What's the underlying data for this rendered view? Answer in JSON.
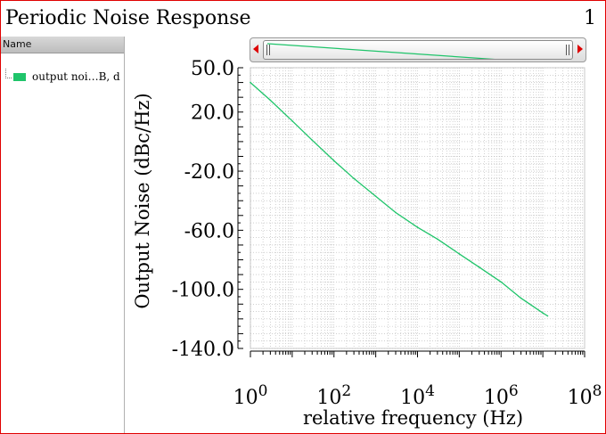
{
  "window": {
    "title": "Periodic Noise Response",
    "page_number": "1"
  },
  "legend": {
    "header": "Name",
    "items": [
      {
        "label": "output noi…B, d",
        "color": "#1fc46a"
      }
    ]
  },
  "colors": {
    "frame": "#e00000",
    "series": "#1fc46a",
    "grid": "#b4b4b4"
  },
  "chart_data": {
    "type": "line",
    "title": "Periodic Noise Response",
    "xlabel": "relative frequency (Hz)",
    "ylabel": "Output Noise (dBc/Hz)",
    "x_scale": "log",
    "xlim": [
      1,
      100000000
    ],
    "ylim": [
      -140,
      50
    ],
    "x_ticks": [
      {
        "base": "10",
        "exp": "0"
      },
      {
        "base": "10",
        "exp": "2"
      },
      {
        "base": "10",
        "exp": "4"
      },
      {
        "base": "10",
        "exp": "6"
      },
      {
        "base": "10",
        "exp": "8"
      }
    ],
    "y_ticks": [
      "50.0",
      "20.0",
      "-20.0",
      "-60.0",
      "-100.0",
      "-140.0"
    ],
    "grid": true,
    "series": [
      {
        "name": "output noi…B, d",
        "color": "#1fc46a",
        "points": [
          [
            1,
            40
          ],
          [
            3,
            28
          ],
          [
            10,
            14
          ],
          [
            30,
            1
          ],
          [
            100,
            -13
          ],
          [
            300,
            -25
          ],
          [
            1000,
            -37
          ],
          [
            3000,
            -48
          ],
          [
            10000,
            -58
          ],
          [
            30000,
            -66
          ],
          [
            100000,
            -76
          ],
          [
            300000,
            -85
          ],
          [
            1000000,
            -95
          ],
          [
            3000000,
            -106
          ],
          [
            10000000,
            -116
          ],
          [
            13000000,
            -118
          ]
        ]
      }
    ]
  }
}
